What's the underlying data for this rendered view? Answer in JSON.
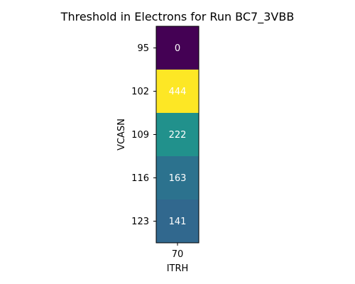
{
  "chart_data": {
    "type": "heatmap",
    "title": "Threshold in Electrons for Run BC7_3VBB",
    "xlabel": "ITRH",
    "ylabel": "VCASN",
    "x_categories": [
      "70"
    ],
    "y_categories": [
      "95",
      "102",
      "109",
      "116",
      "123"
    ],
    "values": [
      [
        0
      ],
      [
        444
      ],
      [
        222
      ],
      [
        163
      ],
      [
        141
      ]
    ],
    "value_range": [
      0,
      444
    ],
    "colormap": "viridis",
    "cell_colors": [
      "#440154",
      "#fde725",
      "#21918c",
      "#2c728e",
      "#31688e"
    ],
    "grid": false
  }
}
